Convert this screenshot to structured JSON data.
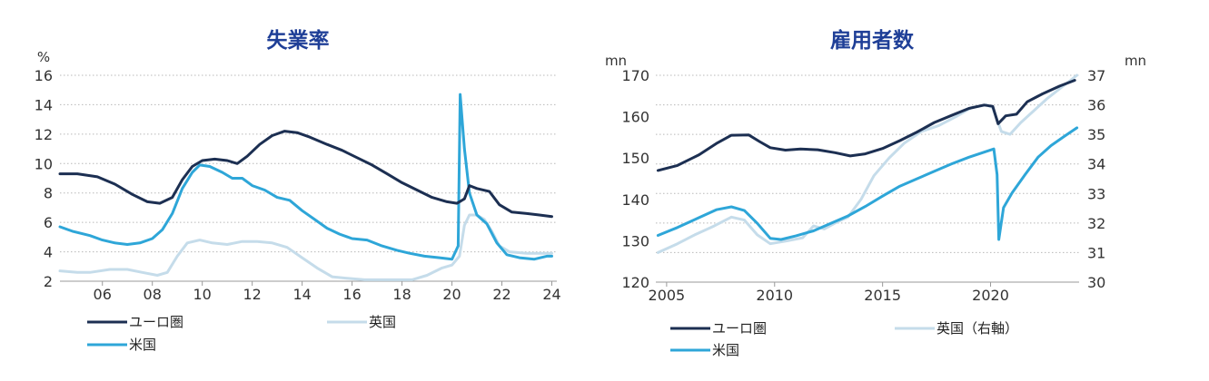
{
  "chart_data": [
    {
      "type": "line",
      "title": "失業率",
      "yunit": "%",
      "ylim": [
        2,
        16
      ],
      "yticks": [
        "2",
        "4",
        "6",
        "8",
        "10",
        "12",
        "14",
        "16"
      ],
      "xlim": [
        2004.3,
        2024.2
      ],
      "xticks": [
        {
          "label": "06",
          "x": 2006
        },
        {
          "label": "08",
          "x": 2008
        },
        {
          "label": "10",
          "x": 2010
        },
        {
          "label": "12",
          "x": 2012
        },
        {
          "label": "14",
          "x": 2014
        },
        {
          "label": "16",
          "x": 2016
        },
        {
          "label": "18",
          "x": 2018
        },
        {
          "label": "20",
          "x": 2020
        },
        {
          "label": "22",
          "x": 2022
        },
        {
          "label": "24",
          "x": 2024
        }
      ],
      "grid": true,
      "legend": "bottom",
      "series": [
        {
          "name": "ユーロ圏",
          "color": "#1c2f52",
          "points": [
            [
              2004.3,
              9.3
            ],
            [
              2005.0,
              9.3
            ],
            [
              2005.8,
              9.1
            ],
            [
              2006.5,
              8.6
            ],
            [
              2007.2,
              7.9
            ],
            [
              2007.8,
              7.4
            ],
            [
              2008.3,
              7.3
            ],
            [
              2008.8,
              7.7
            ],
            [
              2009.2,
              8.9
            ],
            [
              2009.6,
              9.8
            ],
            [
              2010.0,
              10.2
            ],
            [
              2010.5,
              10.3
            ],
            [
              2011.0,
              10.2
            ],
            [
              2011.4,
              10.0
            ],
            [
              2011.8,
              10.5
            ],
            [
              2012.3,
              11.3
            ],
            [
              2012.8,
              11.9
            ],
            [
              2013.3,
              12.2
            ],
            [
              2013.8,
              12.1
            ],
            [
              2014.3,
              11.8
            ],
            [
              2015.0,
              11.3
            ],
            [
              2015.6,
              10.9
            ],
            [
              2016.2,
              10.4
            ],
            [
              2016.8,
              9.9
            ],
            [
              2017.4,
              9.3
            ],
            [
              2018.0,
              8.7
            ],
            [
              2018.6,
              8.2
            ],
            [
              2019.2,
              7.7
            ],
            [
              2019.8,
              7.4
            ],
            [
              2020.2,
              7.3
            ],
            [
              2020.5,
              7.6
            ],
            [
              2020.7,
              8.5
            ],
            [
              2021.0,
              8.3
            ],
            [
              2021.5,
              8.1
            ],
            [
              2021.9,
              7.2
            ],
            [
              2022.4,
              6.7
            ],
            [
              2023.0,
              6.6
            ],
            [
              2023.5,
              6.5
            ],
            [
              2024.0,
              6.4
            ]
          ]
        },
        {
          "name": "英国",
          "color": "#c5dcea",
          "points": [
            [
              2004.3,
              2.7
            ],
            [
              2005.0,
              2.6
            ],
            [
              2005.5,
              2.6
            ],
            [
              2006.3,
              2.8
            ],
            [
              2007.0,
              2.8
            ],
            [
              2007.6,
              2.6
            ],
            [
              2008.2,
              2.4
            ],
            [
              2008.6,
              2.6
            ],
            [
              2009.0,
              3.7
            ],
            [
              2009.4,
              4.6
            ],
            [
              2009.9,
              4.8
            ],
            [
              2010.4,
              4.6
            ],
            [
              2011.0,
              4.5
            ],
            [
              2011.6,
              4.7
            ],
            [
              2012.2,
              4.7
            ],
            [
              2012.8,
              4.6
            ],
            [
              2013.4,
              4.3
            ],
            [
              2014.0,
              3.6
            ],
            [
              2014.6,
              2.9
            ],
            [
              2015.2,
              2.3
            ],
            [
              2015.8,
              2.2
            ],
            [
              2016.5,
              2.1
            ],
            [
              2017.2,
              2.1
            ],
            [
              2017.8,
              2.1
            ],
            [
              2018.4,
              2.1
            ],
            [
              2019.0,
              2.4
            ],
            [
              2019.6,
              2.9
            ],
            [
              2020.0,
              3.1
            ],
            [
              2020.3,
              3.7
            ],
            [
              2020.5,
              5.8
            ],
            [
              2020.7,
              6.5
            ],
            [
              2021.0,
              6.5
            ],
            [
              2021.3,
              6.2
            ],
            [
              2021.6,
              5.4
            ],
            [
              2021.9,
              4.4
            ],
            [
              2022.3,
              4.0
            ],
            [
              2023.0,
              3.9
            ],
            [
              2024.0,
              3.9
            ]
          ]
        },
        {
          "name": "米国",
          "color": "#2ea6d8",
          "points": [
            [
              2004.3,
              5.7
            ],
            [
              2004.8,
              5.4
            ],
            [
              2005.5,
              5.1
            ],
            [
              2006.0,
              4.8
            ],
            [
              2006.5,
              4.6
            ],
            [
              2007.0,
              4.5
            ],
            [
              2007.5,
              4.6
            ],
            [
              2008.0,
              4.9
            ],
            [
              2008.4,
              5.5
            ],
            [
              2008.8,
              6.6
            ],
            [
              2009.2,
              8.3
            ],
            [
              2009.6,
              9.4
            ],
            [
              2009.9,
              9.9
            ],
            [
              2010.3,
              9.8
            ],
            [
              2010.8,
              9.4
            ],
            [
              2011.2,
              9.0
            ],
            [
              2011.6,
              9.0
            ],
            [
              2012.0,
              8.5
            ],
            [
              2012.5,
              8.2
            ],
            [
              2013.0,
              7.7
            ],
            [
              2013.5,
              7.5
            ],
            [
              2014.0,
              6.8
            ],
            [
              2014.5,
              6.2
            ],
            [
              2015.0,
              5.6
            ],
            [
              2015.5,
              5.2
            ],
            [
              2016.0,
              4.9
            ],
            [
              2016.6,
              4.8
            ],
            [
              2017.2,
              4.4
            ],
            [
              2017.8,
              4.1
            ],
            [
              2018.3,
              3.9
            ],
            [
              2018.9,
              3.7
            ],
            [
              2019.5,
              3.6
            ],
            [
              2020.0,
              3.5
            ],
            [
              2020.25,
              4.4
            ],
            [
              2020.33,
              14.7
            ],
            [
              2020.5,
              11.0
            ],
            [
              2020.7,
              8.0
            ],
            [
              2021.0,
              6.5
            ],
            [
              2021.4,
              5.9
            ],
            [
              2021.8,
              4.6
            ],
            [
              2022.2,
              3.8
            ],
            [
              2022.7,
              3.6
            ],
            [
              2023.3,
              3.5
            ],
            [
              2023.8,
              3.7
            ],
            [
              2024.0,
              3.7
            ]
          ]
        }
      ]
    },
    {
      "type": "line",
      "title": "雇用者数",
      "yunit_left": "mn",
      "yunit_right": "mn",
      "ylim_left": [
        120,
        170
      ],
      "ylim_right": [
        30,
        37
      ],
      "yticks_left": [
        "120",
        "130",
        "140",
        "150",
        "160",
        "170"
      ],
      "yticks_right": [
        "30",
        "31",
        "32",
        "33",
        "34",
        "35",
        "36",
        "37"
      ],
      "xlim": [
        2004.5,
        2024.1
      ],
      "xticks": [
        {
          "label": "2005",
          "x": 2005
        },
        {
          "label": "2010",
          "x": 2010
        },
        {
          "label": "2015",
          "x": 2015
        },
        {
          "label": "2020",
          "x": 2020
        }
      ],
      "grid": true,
      "legend": "bottom",
      "series": [
        {
          "name": "ユーロ圏",
          "color": "#1c2f52",
          "axis": "left",
          "points": [
            [
              2004.6,
              147.0
            ],
            [
              2005.5,
              148.2
            ],
            [
              2006.5,
              150.8
            ],
            [
              2007.3,
              153.5
            ],
            [
              2008.0,
              155.5
            ],
            [
              2008.8,
              155.6
            ],
            [
              2009.3,
              154.0
            ],
            [
              2009.8,
              152.5
            ],
            [
              2010.5,
              151.9
            ],
            [
              2011.2,
              152.2
            ],
            [
              2012.0,
              152.0
            ],
            [
              2012.8,
              151.3
            ],
            [
              2013.5,
              150.5
            ],
            [
              2014.2,
              151.0
            ],
            [
              2015.0,
              152.3
            ],
            [
              2015.8,
              154.2
            ],
            [
              2016.6,
              156.3
            ],
            [
              2017.4,
              158.6
            ],
            [
              2018.2,
              160.3
            ],
            [
              2019.0,
              162.0
            ],
            [
              2019.7,
              162.8
            ],
            [
              2020.1,
              162.5
            ],
            [
              2020.35,
              158.3
            ],
            [
              2020.7,
              160.2
            ],
            [
              2021.2,
              160.6
            ],
            [
              2021.7,
              163.6
            ],
            [
              2022.4,
              165.5
            ],
            [
              2023.2,
              167.4
            ],
            [
              2023.9,
              168.8
            ]
          ]
        },
        {
          "name": "英国（右軸）",
          "color": "#c5dcea",
          "axis": "right",
          "points": [
            [
              2004.6,
              31.0
            ],
            [
              2005.5,
              31.3
            ],
            [
              2006.3,
              31.6
            ],
            [
              2007.2,
              31.9
            ],
            [
              2008.0,
              32.2
            ],
            [
              2008.6,
              32.1
            ],
            [
              2009.2,
              31.6
            ],
            [
              2009.8,
              31.3
            ],
            [
              2010.6,
              31.4
            ],
            [
              2011.3,
              31.5
            ],
            [
              2011.8,
              31.9
            ],
            [
              2012.3,
              31.8
            ],
            [
              2012.8,
              32.0
            ],
            [
              2013.4,
              32.2
            ],
            [
              2014.0,
              32.8
            ],
            [
              2014.6,
              33.6
            ],
            [
              2015.3,
              34.2
            ],
            [
              2016.0,
              34.7
            ],
            [
              2016.8,
              35.1
            ],
            [
              2017.6,
              35.3
            ],
            [
              2018.4,
              35.6
            ],
            [
              2019.1,
              35.9
            ],
            [
              2019.8,
              36.0
            ],
            [
              2020.1,
              35.9
            ],
            [
              2020.5,
              35.1
            ],
            [
              2020.9,
              35.0
            ],
            [
              2021.4,
              35.4
            ],
            [
              2022.0,
              35.8
            ],
            [
              2022.6,
              36.2
            ],
            [
              2023.3,
              36.6
            ],
            [
              2024.0,
              37.0
            ]
          ]
        },
        {
          "name": "米国",
          "color": "#2ea6d8",
          "axis": "left",
          "points": [
            [
              2004.6,
              131.3
            ],
            [
              2005.5,
              133.2
            ],
            [
              2006.5,
              135.6
            ],
            [
              2007.3,
              137.5
            ],
            [
              2008.0,
              138.2
            ],
            [
              2008.6,
              137.3
            ],
            [
              2009.2,
              134.2
            ],
            [
              2009.8,
              130.6
            ],
            [
              2010.3,
              130.3
            ],
            [
              2011.0,
              131.2
            ],
            [
              2011.8,
              132.4
            ],
            [
              2012.6,
              134.2
            ],
            [
              2013.4,
              136.0
            ],
            [
              2014.2,
              138.3
            ],
            [
              2015.0,
              140.8
            ],
            [
              2015.8,
              143.2
            ],
            [
              2016.6,
              145.0
            ],
            [
              2017.4,
              146.8
            ],
            [
              2018.2,
              148.6
            ],
            [
              2019.0,
              150.2
            ],
            [
              2019.8,
              151.6
            ],
            [
              2020.15,
              152.2
            ],
            [
              2020.3,
              146.0
            ],
            [
              2020.38,
              130.3
            ],
            [
              2020.6,
              138.0
            ],
            [
              2021.0,
              141.6
            ],
            [
              2021.6,
              146.0
            ],
            [
              2022.2,
              150.2
            ],
            [
              2022.8,
              153.0
            ],
            [
              2023.4,
              155.2
            ],
            [
              2024.0,
              157.3
            ]
          ]
        }
      ]
    }
  ]
}
